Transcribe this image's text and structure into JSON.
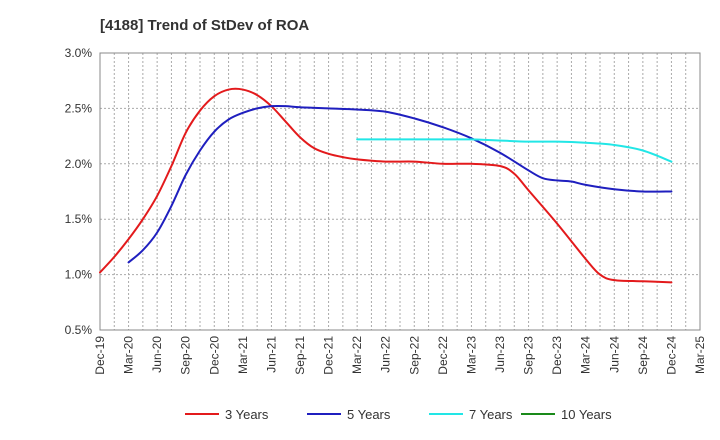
{
  "chart_data": {
    "type": "line",
    "title": "[4188]  Trend of StDev of ROA",
    "xlabel": "",
    "ylabel": "",
    "x_ticks": [
      "Dec-19",
      "Mar-20",
      "Jun-20",
      "Sep-20",
      "Dec-20",
      "Mar-21",
      "Jun-21",
      "Sep-21",
      "Dec-21",
      "Mar-22",
      "Jun-22",
      "Sep-22",
      "Dec-22",
      "Mar-23",
      "Jun-23",
      "Sep-23",
      "Dec-23",
      "Mar-24",
      "Jun-24",
      "Sep-24",
      "Dec-24",
      "Mar-25"
    ],
    "y_ticks": [
      "0.5%",
      "1.0%",
      "1.5%",
      "2.0%",
      "2.5%",
      "3.0%"
    ],
    "ylim": [
      0.5,
      3.0
    ],
    "grid": true,
    "legend_position": "bottom",
    "series": [
      {
        "name": "3 Years",
        "color": "#e31a1c",
        "values": [
          {
            "i": 0,
            "v": 1.02
          },
          {
            "i": 0.5,
            "v": 1.16
          },
          {
            "i": 1,
            "v": 1.32
          },
          {
            "i": 1.5,
            "v": 1.5
          },
          {
            "i": 2,
            "v": 1.71
          },
          {
            "i": 2.5,
            "v": 1.98
          },
          {
            "i": 3,
            "v": 2.28
          },
          {
            "i": 3.5,
            "v": 2.48
          },
          {
            "i": 4,
            "v": 2.61
          },
          {
            "i": 4.5,
            "v": 2.67
          },
          {
            "i": 5,
            "v": 2.67
          },
          {
            "i": 5.5,
            "v": 2.62
          },
          {
            "i": 6,
            "v": 2.52
          },
          {
            "i": 6.5,
            "v": 2.38
          },
          {
            "i": 7,
            "v": 2.24
          },
          {
            "i": 7.5,
            "v": 2.14
          },
          {
            "i": 8,
            "v": 2.09
          },
          {
            "i": 8.5,
            "v": 2.06
          },
          {
            "i": 9,
            "v": 2.04
          },
          {
            "i": 10,
            "v": 2.02
          },
          {
            "i": 11,
            "v": 2.02
          },
          {
            "i": 12,
            "v": 2.0
          },
          {
            "i": 13,
            "v": 2.0
          },
          {
            "i": 14,
            "v": 1.98
          },
          {
            "i": 14.5,
            "v": 1.91
          },
          {
            "i": 15,
            "v": 1.76
          },
          {
            "i": 16,
            "v": 1.46
          },
          {
            "i": 17,
            "v": 1.14
          },
          {
            "i": 17.5,
            "v": 1.0
          },
          {
            "i": 18,
            "v": 0.95
          },
          {
            "i": 19,
            "v": 0.94
          },
          {
            "i": 20,
            "v": 0.93
          }
        ]
      },
      {
        "name": "5 Years",
        "color": "#1f1fbf",
        "values": [
          {
            "i": 1,
            "v": 1.11
          },
          {
            "i": 1.5,
            "v": 1.22
          },
          {
            "i": 2,
            "v": 1.38
          },
          {
            "i": 2.5,
            "v": 1.62
          },
          {
            "i": 3,
            "v": 1.9
          },
          {
            "i": 3.5,
            "v": 2.12
          },
          {
            "i": 4,
            "v": 2.29
          },
          {
            "i": 4.5,
            "v": 2.4
          },
          {
            "i": 5,
            "v": 2.46
          },
          {
            "i": 5.5,
            "v": 2.5
          },
          {
            "i": 6,
            "v": 2.52
          },
          {
            "i": 6.5,
            "v": 2.52
          },
          {
            "i": 7,
            "v": 2.51
          },
          {
            "i": 8,
            "v": 2.5
          },
          {
            "i": 9,
            "v": 2.49
          },
          {
            "i": 10,
            "v": 2.47
          },
          {
            "i": 11,
            "v": 2.41
          },
          {
            "i": 12,
            "v": 2.33
          },
          {
            "i": 13,
            "v": 2.23
          },
          {
            "i": 14,
            "v": 2.1
          },
          {
            "i": 15,
            "v": 1.94
          },
          {
            "i": 15.5,
            "v": 1.87
          },
          {
            "i": 16,
            "v": 1.85
          },
          {
            "i": 16.5,
            "v": 1.84
          },
          {
            "i": 17,
            "v": 1.81
          },
          {
            "i": 18,
            "v": 1.77
          },
          {
            "i": 19,
            "v": 1.75
          },
          {
            "i": 20,
            "v": 1.75
          }
        ]
      },
      {
        "name": "7 Years",
        "color": "#22e6e6",
        "values": [
          {
            "i": 9,
            "v": 2.22
          },
          {
            "i": 10,
            "v": 2.22
          },
          {
            "i": 11,
            "v": 2.22
          },
          {
            "i": 12,
            "v": 2.22
          },
          {
            "i": 13,
            "v": 2.22
          },
          {
            "i": 14,
            "v": 2.21
          },
          {
            "i": 15,
            "v": 2.2
          },
          {
            "i": 16,
            "v": 2.2
          },
          {
            "i": 17,
            "v": 2.19
          },
          {
            "i": 18,
            "v": 2.17
          },
          {
            "i": 19,
            "v": 2.12
          },
          {
            "i": 20,
            "v": 2.02
          }
        ]
      },
      {
        "name": "10 Years",
        "color": "#1a8a1a",
        "values": []
      }
    ]
  }
}
